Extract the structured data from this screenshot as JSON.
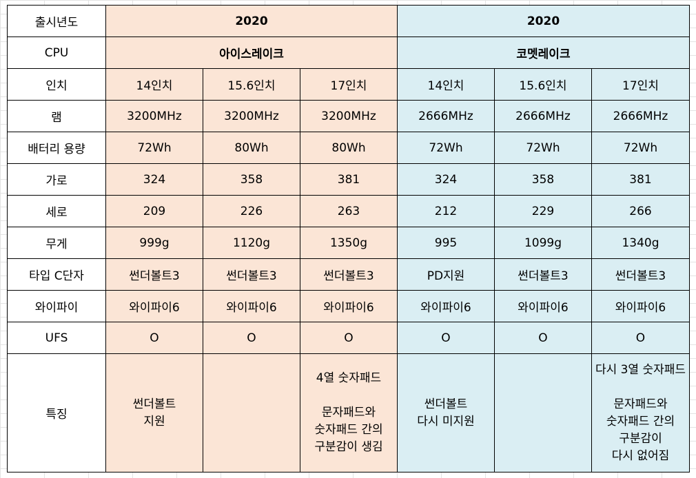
{
  "colors": {
    "icelake_bg": "#fbe5d6",
    "cometlake_bg": "#daeef3",
    "grid": "#e3e3e3"
  },
  "rows": {
    "year": {
      "label": "출시년도",
      "icelake": "2020",
      "cometlake": "2020"
    },
    "cpu": {
      "label": "CPU",
      "icelake": "아이스레이크",
      "cometlake": "코멧레이크"
    },
    "inch": {
      "label": "인치",
      "values": [
        "14인치",
        "15.6인치",
        "17인치",
        "14인치",
        "15.6인치",
        "17인치"
      ]
    },
    "ram": {
      "label": "램",
      "values": [
        "3200MHz",
        "3200MHz",
        "3200MHz",
        "2666MHz",
        "2666MHz",
        "2666MHz"
      ]
    },
    "battery": {
      "label": "배터리 용량",
      "values": [
        "72Wh",
        "80Wh",
        "80Wh",
        "72Wh",
        "72Wh",
        "72Wh"
      ]
    },
    "width": {
      "label": "가로",
      "values": [
        "324",
        "358",
        "381",
        "324",
        "358",
        "381"
      ]
    },
    "depth": {
      "label": "세로",
      "values": [
        "209",
        "226",
        "263",
        "212",
        "229",
        "266"
      ]
    },
    "weight": {
      "label": "무게",
      "values": [
        "999g",
        "1120g",
        "1350g",
        "995",
        "1099g",
        "1340g"
      ]
    },
    "typec": {
      "label": "타입 C단자",
      "values": [
        "썬더볼트3",
        "썬더볼트3",
        "썬더볼트3",
        "PD지원",
        "썬더볼트3",
        "썬더볼트3"
      ]
    },
    "wifi": {
      "label": "와이파이",
      "values": [
        "와이파이6",
        "와이파이6",
        "와이파이6",
        "와이파이6",
        "와이파이6",
        "와이파이6"
      ]
    },
    "ufs": {
      "label": "UFS",
      "values": [
        "O",
        "O",
        "O",
        "O",
        "O",
        "O"
      ]
    },
    "feature": {
      "label": "특징",
      "values": [
        "썬더볼트\n지원",
        "",
        "4열 숫자패드\n\n문자패드와\n숫자패드 간의\n구분감이 생김",
        "썬더볼트\n다시 미지원",
        "",
        "다시 3열 숫자패드\n\n문자패드와\n숫자패드 간의\n구분감이\n다시 없어짐"
      ]
    }
  }
}
